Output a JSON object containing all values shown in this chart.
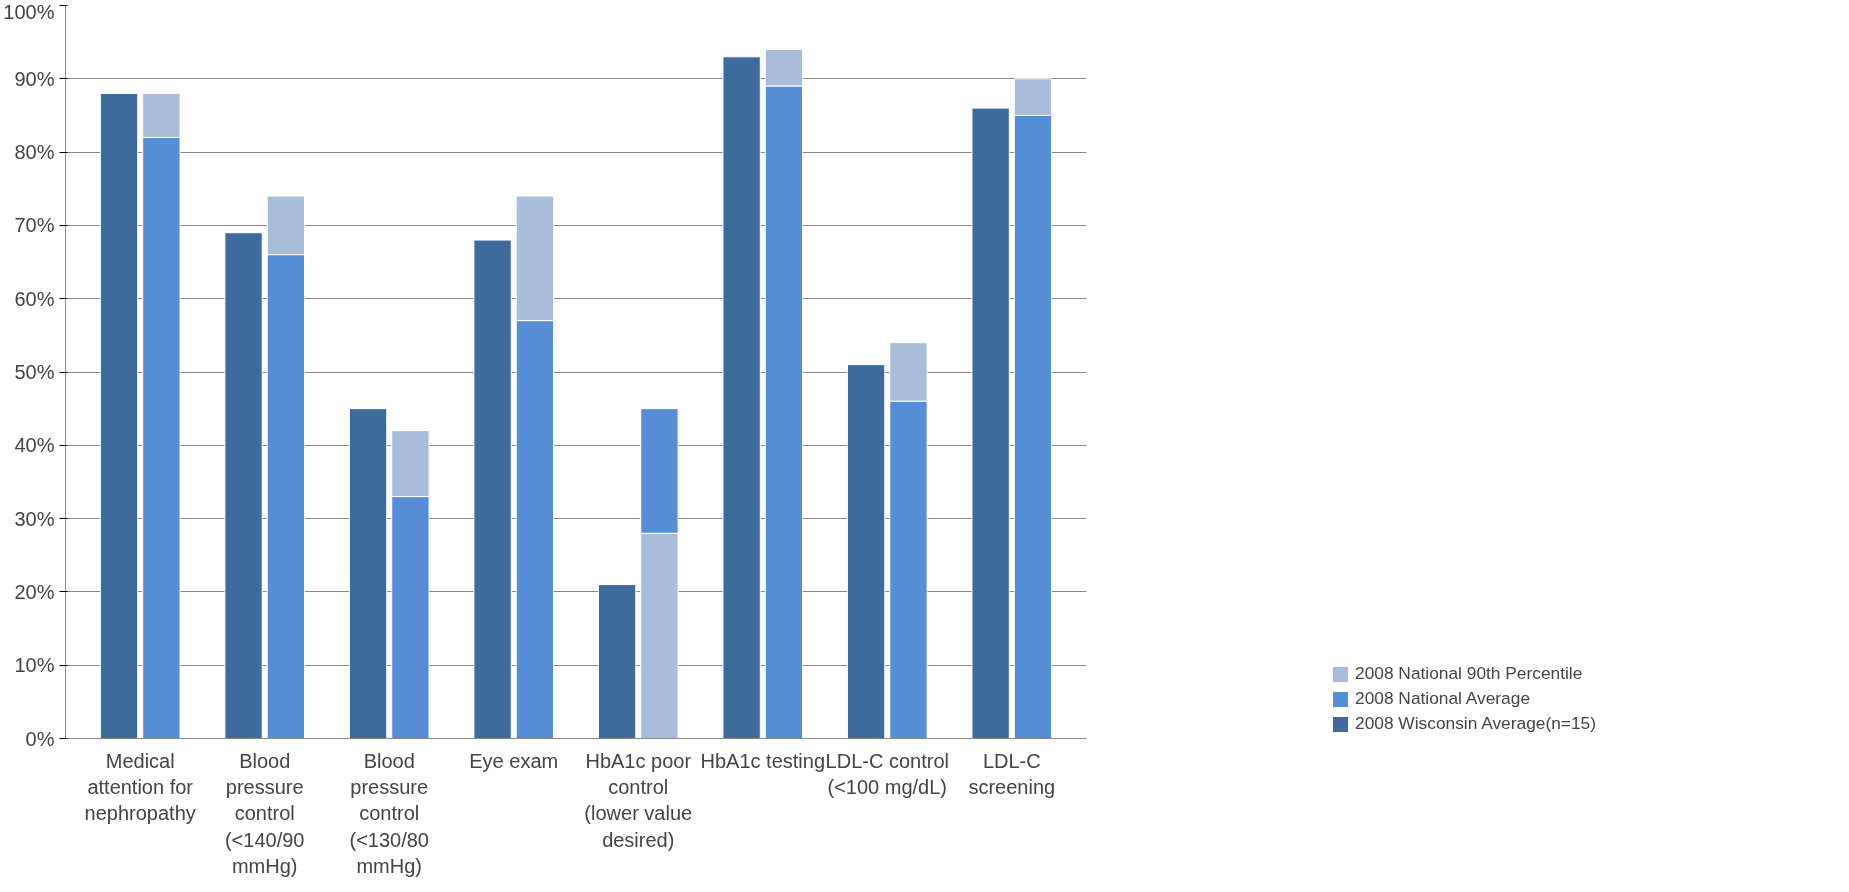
{
  "chart_data": {
    "type": "bar",
    "categories": [
      "Medical attention for nephropathy",
      "Blood pressure control (<140/90 mmHg)",
      "Blood pressure control (<130/80 mmHg)",
      "Eye exam",
      "HbA1c poor control (lower value desired)",
      "HbA1c testing",
      "LDL-C control (<100 mg/dL)",
      "LDL-C screening"
    ],
    "series": [
      {
        "name": "2008 National 90th Percentile",
        "color": "#a9bcd9",
        "base": [
          82,
          66,
          33,
          57,
          0,
          89,
          46,
          85
        ],
        "values": [
          6,
          8,
          9,
          17,
          28,
          5,
          8,
          5
        ]
      },
      {
        "name": "2008 National Average",
        "color": "#558ed5",
        "base": [
          0,
          0,
          0,
          0,
          28,
          0,
          0,
          0
        ],
        "values": [
          82,
          66,
          33,
          57,
          17,
          89,
          46,
          85
        ]
      },
      {
        "name": "2008 Wisconsin Average(n=15)",
        "color": "#3f6a9c",
        "values": [
          88,
          69,
          45,
          68,
          21,
          93,
          51,
          86
        ]
      }
    ],
    "ylim": [
      0,
      100
    ],
    "yticks": [
      {
        "value": 0,
        "label": "0%"
      },
      {
        "value": 10,
        "label": "10%"
      },
      {
        "value": 20,
        "label": "20%"
      },
      {
        "value": 30,
        "label": "30%"
      },
      {
        "value": 40,
        "label": "40%"
      },
      {
        "value": 50,
        "label": "50%"
      },
      {
        "value": 60,
        "label": "60%"
      },
      {
        "value": 70,
        "label": "70%"
      },
      {
        "value": 80,
        "label": "80%"
      },
      {
        "value": 90,
        "label": "90%"
      },
      {
        "value": 100,
        "label": "100%"
      }
    ],
    "grid": "y",
    "legend": "bottom right"
  }
}
